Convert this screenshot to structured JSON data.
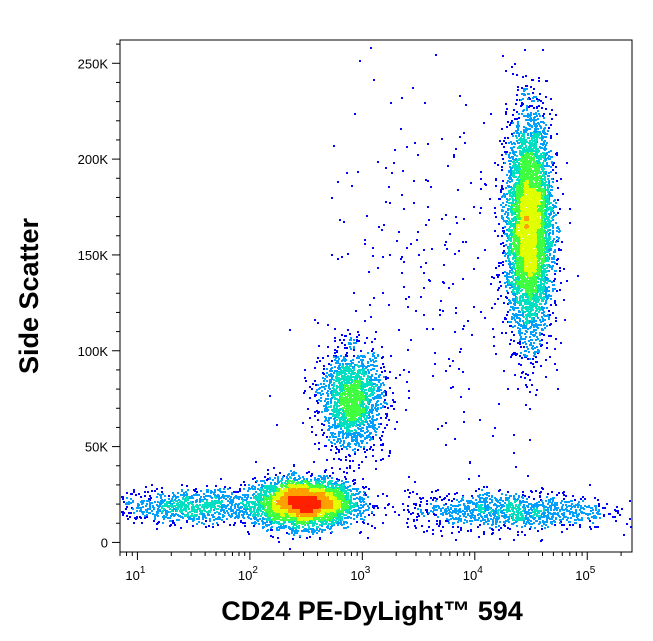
{
  "chart_data": {
    "type": "scatter",
    "style": "density-colored flow cytometry dot plot",
    "xlabel": "CD24 PE-DyLight™ 594",
    "ylabel": "Side Scatter",
    "x_scale": "log",
    "xlim": [
      7,
      250000
    ],
    "ylim": [
      -5000,
      262144
    ],
    "x_ticks": [
      {
        "base": "10",
        "exp": "1",
        "value": 10
      },
      {
        "base": "10",
        "exp": "2",
        "value": 100
      },
      {
        "base": "10",
        "exp": "3",
        "value": 1000
      },
      {
        "base": "10",
        "exp": "4",
        "value": 10000
      },
      {
        "base": "10",
        "exp": "5",
        "value": 100000
      }
    ],
    "y_ticks": [
      {
        "label": "0",
        "value": 0
      },
      {
        "label": "50K",
        "value": 50000
      },
      {
        "label": "100K",
        "value": 100000
      },
      {
        "label": "150K",
        "value": 150000
      },
      {
        "label": "200K",
        "value": 200000
      },
      {
        "label": "250K",
        "value": 250000
      }
    ],
    "density_colors": [
      "#0000ff",
      "#00a0ff",
      "#00e0c0",
      "#40ff40",
      "#e0ff00",
      "#ffa000",
      "#ff2000"
    ],
    "populations": [
      {
        "x_center": 300,
        "x_log_sd": 0.22,
        "y_center": 21000,
        "y_sd": 6000,
        "count": 4200
      },
      {
        "x_center": 800,
        "x_log_sd": 0.14,
        "y_center": 75000,
        "y_sd": 13000,
        "count": 1800
      },
      {
        "x_center": 30000,
        "x_log_sd": 0.1,
        "y_center": 165000,
        "y_sd": 28000,
        "count": 5200
      },
      {
        "x_center": 30,
        "x_log_sd": 0.35,
        "y_center": 19000,
        "y_sd": 4500,
        "count": 900
      },
      {
        "x_center": 20000,
        "x_log_sd": 0.45,
        "y_center": 17000,
        "y_sd": 5000,
        "count": 1100
      },
      {
        "x_center": 4000,
        "x_log_sd": 0.5,
        "y_center": 130000,
        "y_sd": 60000,
        "count": 260
      }
    ]
  }
}
